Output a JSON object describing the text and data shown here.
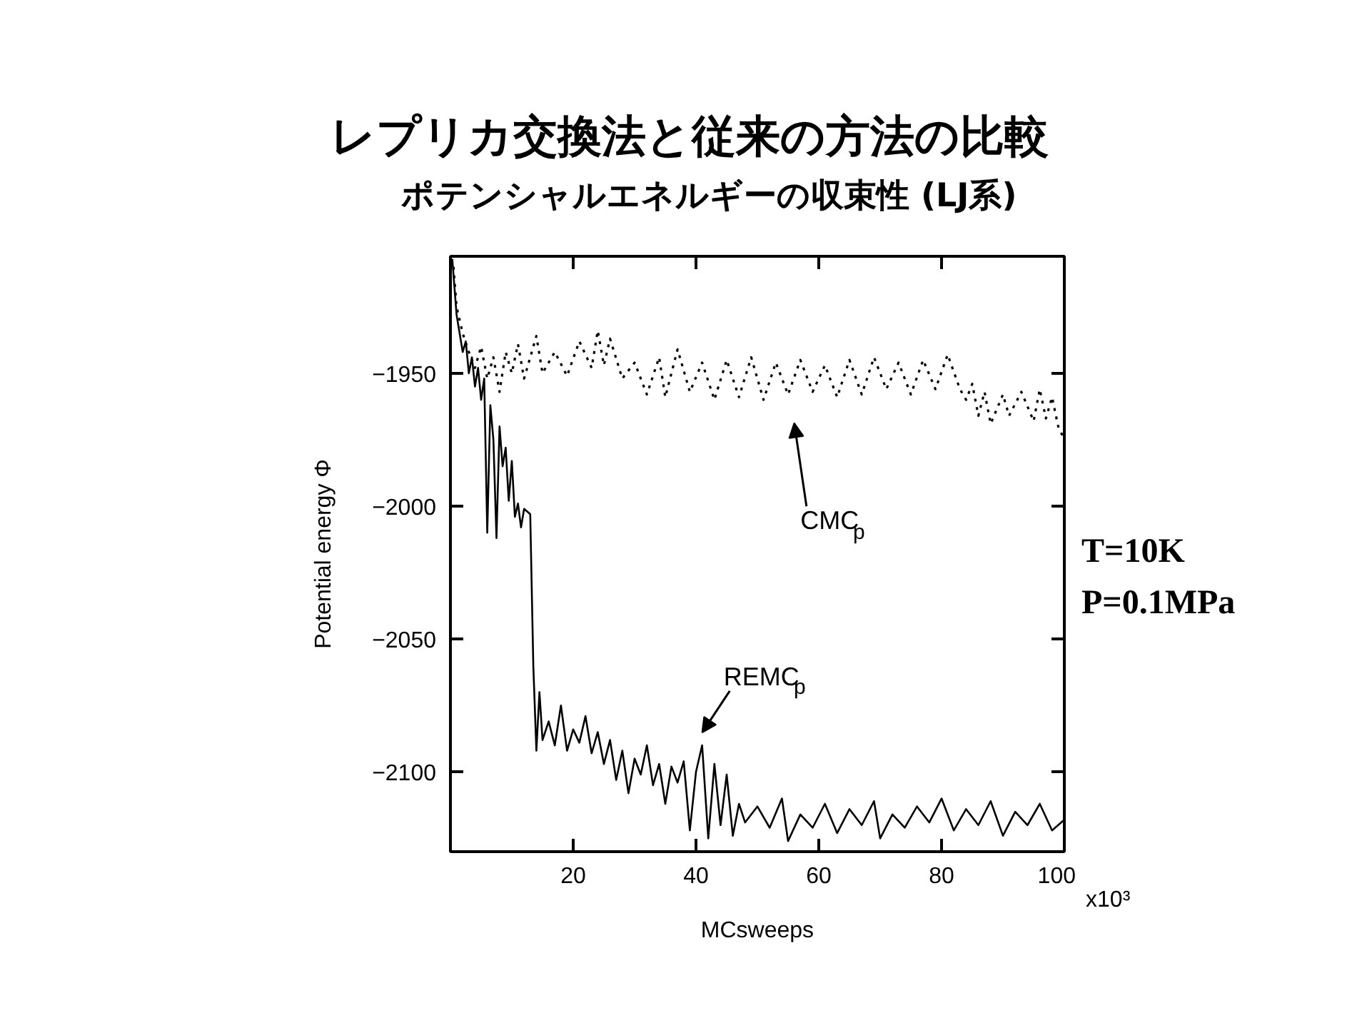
{
  "chart_data": {
    "type": "line",
    "title": "レプリカ交換法と従来の方法の比較",
    "subtitle": "ポテンシャルエネルギーの収束性 (LJ系)",
    "xlabel": "MCsweeps",
    "ylabel": "Potential energy Φ",
    "xlim": [
      0,
      100
    ],
    "ylim": [
      -2130,
      -1906
    ],
    "xticks": [
      20,
      40,
      60,
      80,
      100
    ],
    "yticks": [
      -1950,
      -2000,
      -2050,
      -2100
    ],
    "grid": false,
    "marker": "none",
    "series": [
      {
        "color": "#000000",
        "line_style": "dotted",
        "x": [
          0.5,
          1,
          2,
          3,
          4,
          5,
          6,
          7,
          8,
          9,
          10,
          11,
          12,
          13,
          14,
          15,
          17,
          19,
          21,
          23,
          24,
          25,
          26,
          28,
          30,
          32,
          34,
          35,
          37,
          39,
          41,
          43,
          45,
          47,
          49,
          51,
          53,
          55,
          57,
          59,
          61,
          63,
          65,
          67,
          69,
          71,
          73,
          75,
          77,
          79,
          81,
          83,
          84,
          85,
          86,
          87,
          88,
          90,
          91,
          93,
          95,
          96,
          97,
          98,
          99,
          100
        ],
        "values": [
          -1910,
          -1925,
          -1935,
          -1942,
          -1948,
          -1940,
          -1952,
          -1944,
          -1957,
          -1942,
          -1950,
          -1939,
          -1952,
          -1944,
          -1936,
          -1950,
          -1942,
          -1951,
          -1938,
          -1948,
          -1934,
          -1947,
          -1937,
          -1952,
          -1946,
          -1958,
          -1944,
          -1959,
          -1941,
          -1957,
          -1946,
          -1960,
          -1945,
          -1959,
          -1944,
          -1960,
          -1946,
          -1958,
          -1945,
          -1957,
          -1947,
          -1959,
          -1945,
          -1958,
          -1944,
          -1956,
          -1946,
          -1958,
          -1945,
          -1956,
          -1943,
          -1956,
          -1960,
          -1954,
          -1966,
          -1957,
          -1969,
          -1958,
          -1966,
          -1957,
          -1968,
          -1956,
          -1967,
          -1959,
          -1970,
          -1975
        ]
      },
      {
        "color": "#000000",
        "line_style": "solid",
        "x": [
          0.3,
          1,
          1.5,
          2,
          2.5,
          3,
          3.5,
          4,
          4.5,
          5,
          5.5,
          6,
          6.5,
          7,
          7.5,
          8,
          8.5,
          9,
          9.5,
          10,
          10.5,
          11,
          11.5,
          12,
          13,
          13.5,
          14,
          14.5,
          15,
          16,
          17,
          18,
          19,
          20,
          21,
          22,
          23,
          24,
          25,
          26,
          27,
          28,
          29,
          30,
          31,
          32,
          33,
          34,
          35,
          36,
          37,
          38,
          39,
          40,
          41,
          42,
          43,
          44,
          45,
          46,
          47,
          48,
          50,
          52,
          54,
          55,
          57,
          59,
          61,
          63,
          65,
          67,
          69,
          70,
          72,
          74,
          76,
          78,
          80,
          82,
          84,
          86,
          88,
          90,
          92,
          94,
          96,
          98,
          100
        ],
        "values": [
          -1907,
          -1928,
          -1935,
          -1942,
          -1938,
          -1950,
          -1944,
          -1955,
          -1948,
          -1960,
          -1952,
          -2010,
          -1962,
          -1975,
          -2012,
          -1970,
          -1985,
          -1978,
          -1998,
          -1983,
          -2004,
          -1999,
          -2008,
          -2001,
          -2003,
          -2060,
          -2092,
          -2070,
          -2088,
          -2081,
          -2090,
          -2075,
          -2092,
          -2084,
          -2089,
          -2079,
          -2093,
          -2085,
          -2097,
          -2088,
          -2103,
          -2092,
          -2108,
          -2095,
          -2101,
          -2090,
          -2105,
          -2097,
          -2112,
          -2098,
          -2104,
          -2096,
          -2122,
          -2100,
          -2090,
          -2125,
          -2097,
          -2120,
          -2101,
          -2124,
          -2112,
          -2119,
          -2113,
          -2121,
          -2110,
          -2126,
          -2116,
          -2121,
          -2112,
          -2123,
          -2114,
          -2120,
          -2111,
          -2125,
          -2116,
          -2121,
          -2113,
          -2119,
          -2110,
          -2122,
          -2114,
          -2120,
          -2111,
          -2124,
          -2115,
          -2120,
          -2112,
          -2122,
          -2118
        ]
      }
    ],
    "annotations": [
      "CMC$_{p}$",
      "REMC$_{p}$",
      "T=10K",
      "P=0.1MPa",
      "x10³"
    ]
  }
}
